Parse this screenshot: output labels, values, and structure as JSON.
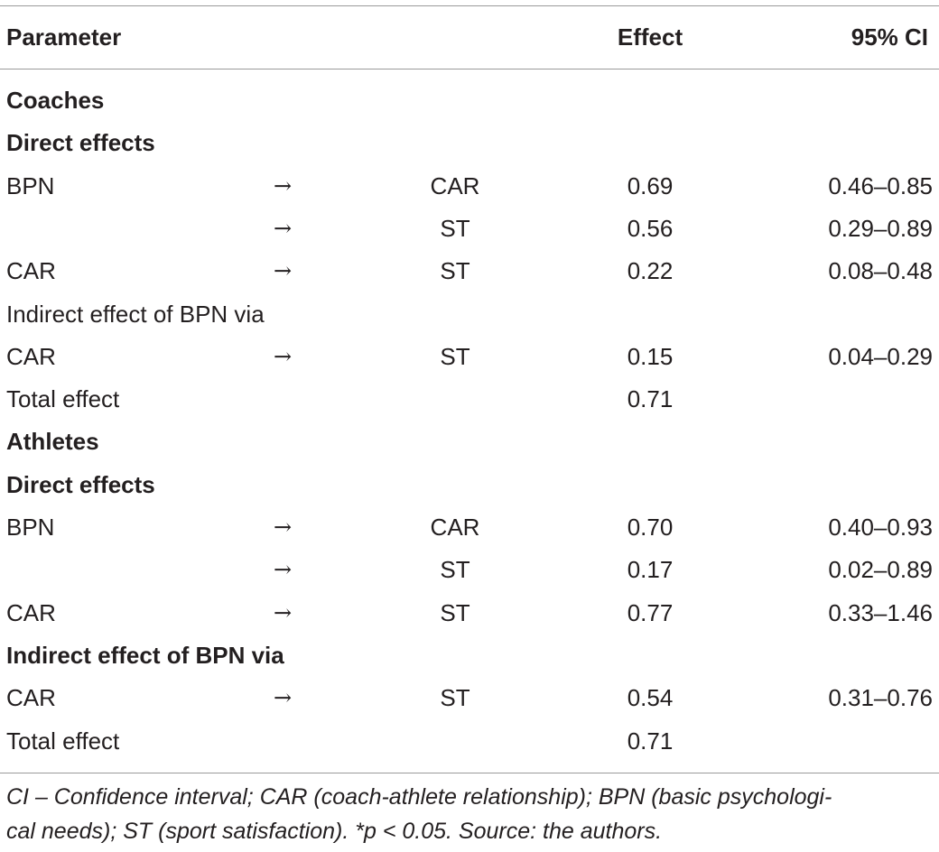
{
  "header": {
    "parameter": "Parameter",
    "effect": "Effect",
    "ci": "95% CI"
  },
  "rows": [
    {
      "parameter": "Coaches",
      "arrow": "",
      "target": "",
      "effect": "",
      "ci": "",
      "bold": true
    },
    {
      "parameter": "Direct effects",
      "arrow": "",
      "target": "",
      "effect": "",
      "ci": "",
      "bold": true
    },
    {
      "parameter": "BPN",
      "arrow": "→",
      "target": "CAR",
      "effect": "0.69",
      "ci": "0.46–0.85",
      "bold": false
    },
    {
      "parameter": "",
      "arrow": "→",
      "target": "ST",
      "effect": "0.56",
      "ci": "0.29–0.89",
      "bold": false
    },
    {
      "parameter": "CAR",
      "arrow": "→",
      "target": "ST",
      "effect": "0.22",
      "ci": "0.08–0.48",
      "bold": false
    },
    {
      "parameter": "Indirect effect of BPN via",
      "arrow": "",
      "target": "",
      "effect": "",
      "ci": "",
      "bold": false
    },
    {
      "parameter": "CAR",
      "arrow": "→",
      "target": "ST",
      "effect": "0.15",
      "ci": "0.04–0.29",
      "bold": false
    },
    {
      "parameter": "Total effect",
      "arrow": "",
      "target": "",
      "effect": "0.71",
      "ci": "",
      "bold": false
    },
    {
      "parameter": "Athletes",
      "arrow": "",
      "target": "",
      "effect": "",
      "ci": "",
      "bold": true
    },
    {
      "parameter": "Direct effects",
      "arrow": "",
      "target": "",
      "effect": "",
      "ci": "",
      "bold": true
    },
    {
      "parameter": "BPN",
      "arrow": "→",
      "target": "CAR",
      "effect": "0.70",
      "ci": "0.40–0.93",
      "bold": false
    },
    {
      "parameter": "",
      "arrow": "→",
      "target": "ST",
      "effect": "0.17",
      "ci": "0.02–0.89",
      "bold": false
    },
    {
      "parameter": "CAR",
      "arrow": "→",
      "target": "ST",
      "effect": "0.77",
      "ci": "0.33–1.46",
      "bold": false
    },
    {
      "parameter": "Indirect effect of BPN via",
      "arrow": "",
      "target": "",
      "effect": "",
      "ci": "",
      "bold": true
    },
    {
      "parameter": "CAR",
      "arrow": "→",
      "target": "ST",
      "effect": "0.54",
      "ci": "0.31–0.76",
      "bold": false
    },
    {
      "parameter": "Total effect",
      "arrow": "",
      "target": "",
      "effect": "0.71",
      "ci": "",
      "bold": false
    }
  ],
  "footnote": {
    "line1": "CI – Confidence interval; CAR (coach-athlete relationship); BPN (basic psychologi-",
    "line2": "cal needs); ST (sport satisfaction). *p < 0.05. Source: the authors."
  }
}
